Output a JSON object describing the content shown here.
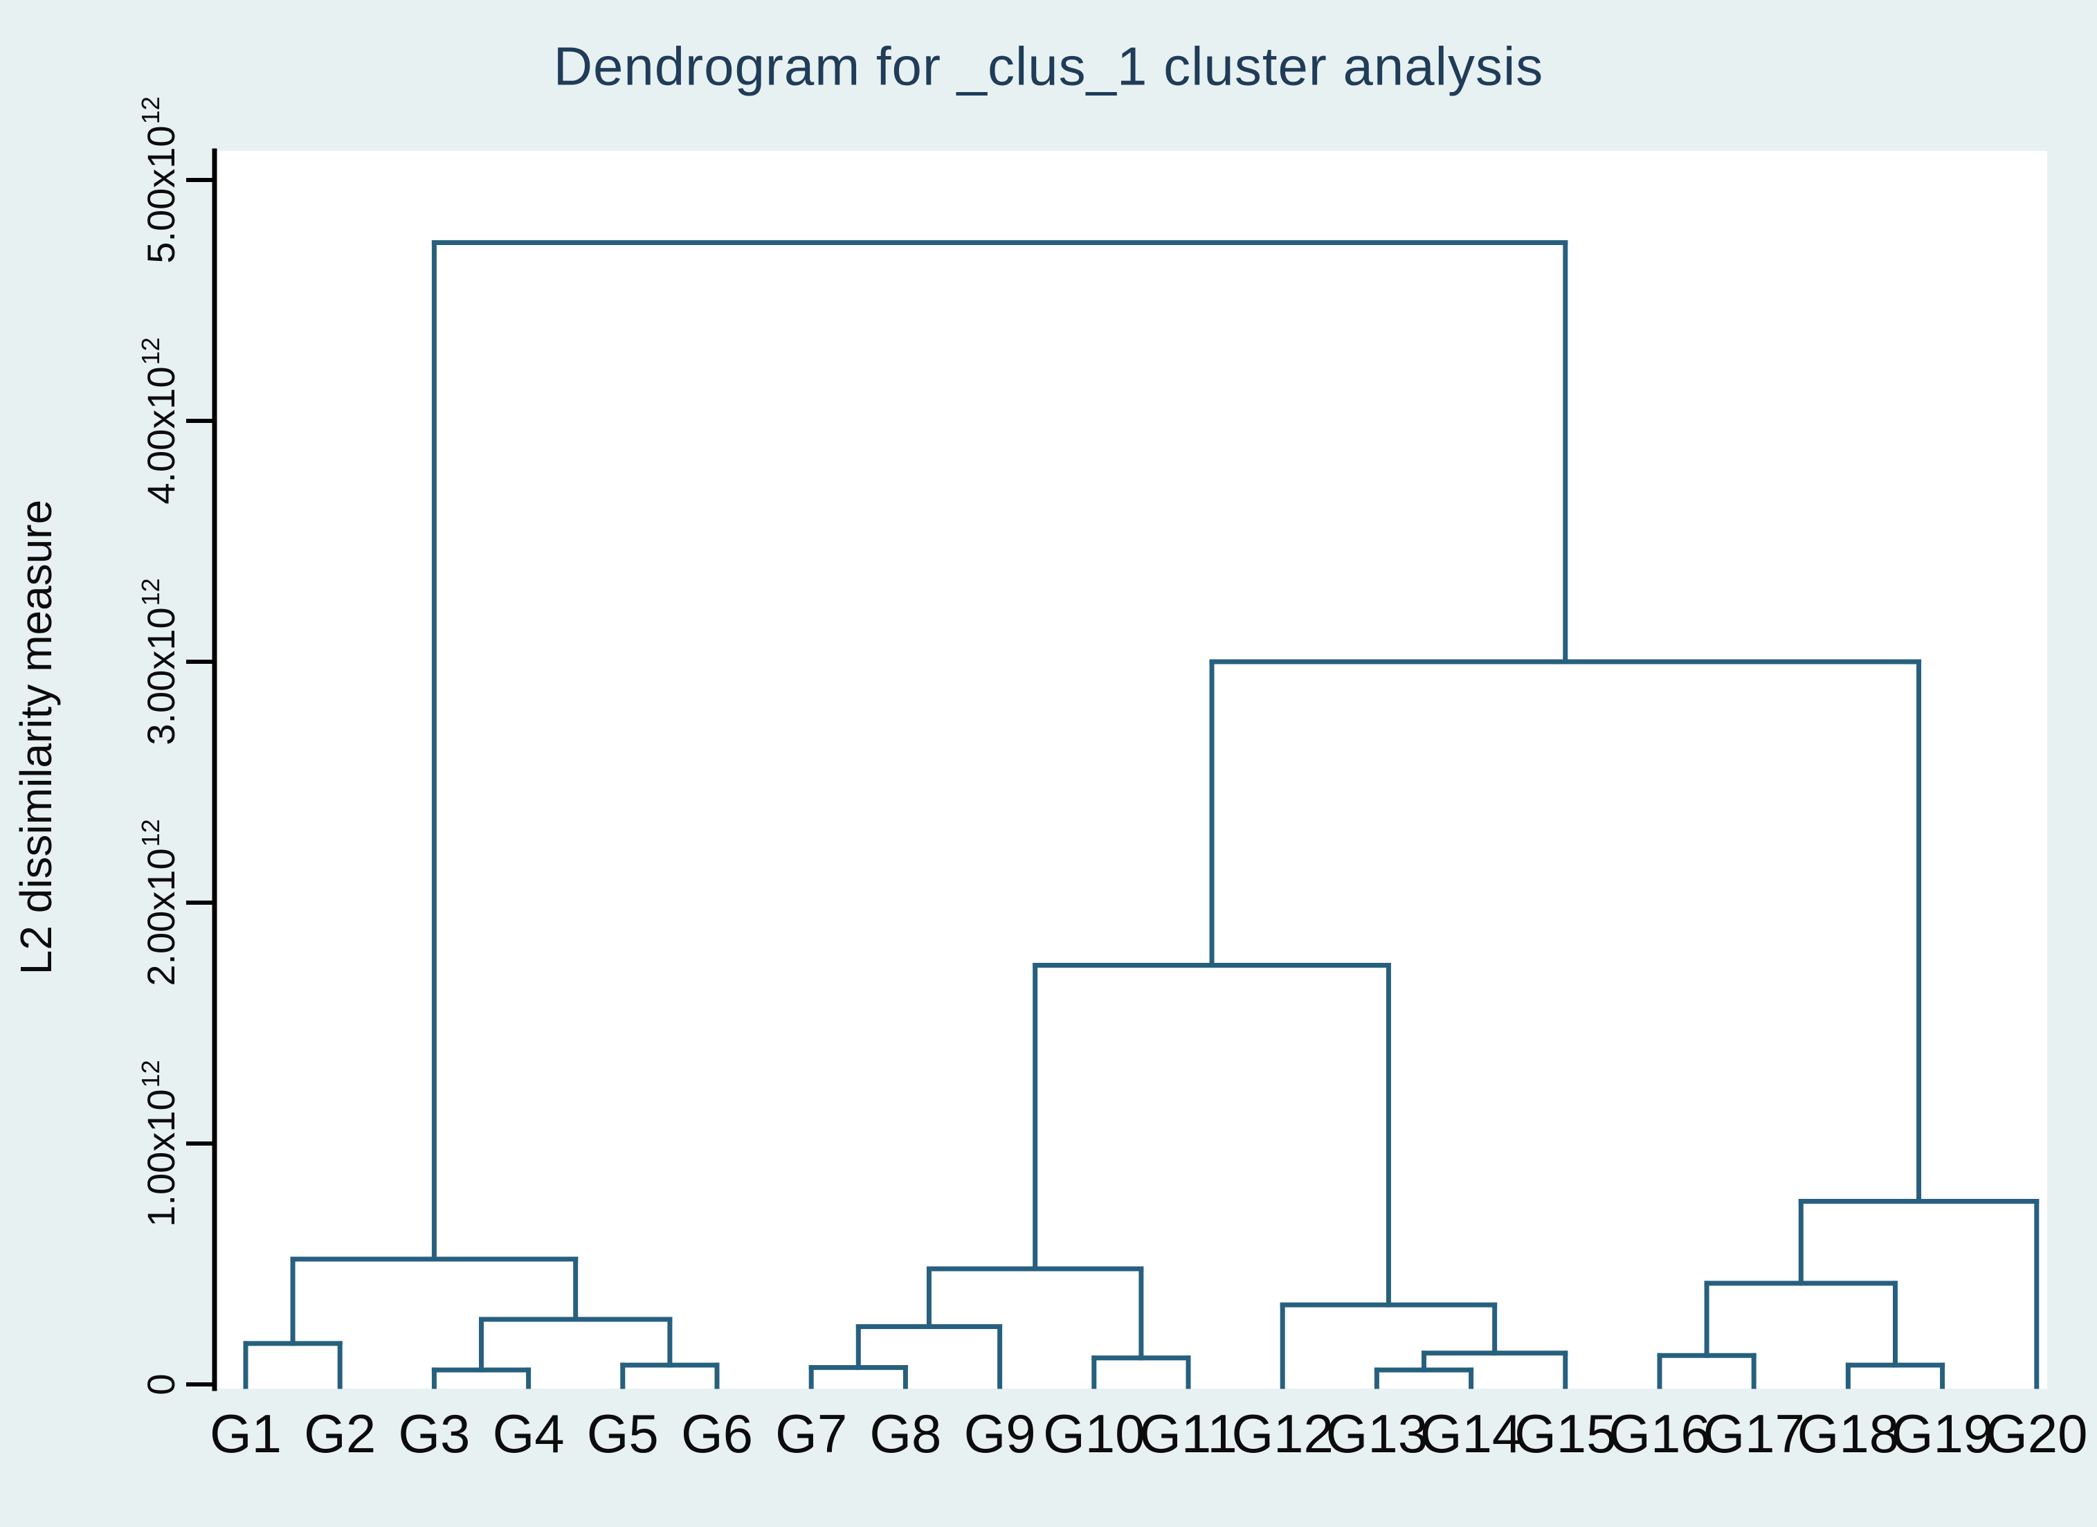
{
  "chart_data": {
    "type": "dendrogram",
    "title": "Dendrogram for _clus_1 cluster analysis",
    "ylabel": "L2 dissimilarity measure",
    "height_unit": "1e12",
    "y_axis": {
      "min": 0,
      "max": 5.12,
      "grid": false,
      "ticks": [
        {
          "v": 0,
          "label": "0"
        },
        {
          "v": 1,
          "label": "1.00x10^12"
        },
        {
          "v": 2,
          "label": "2.00x10^12"
        },
        {
          "v": 3,
          "label": "3.00x10^12"
        },
        {
          "v": 4,
          "label": "4.00x10^12"
        },
        {
          "v": 5,
          "label": "5.00x10^12"
        }
      ]
    },
    "leaves": [
      "G1",
      "G2",
      "G3",
      "G4",
      "G5",
      "G6",
      "G7",
      "G8",
      "G9",
      "G10",
      "G11",
      "G12",
      "G13",
      "G14",
      "G15",
      "G16",
      "G17",
      "G18",
      "G19",
      "G20"
    ],
    "tree": {
      "h": 4.74,
      "c": [
        {
          "h": 0.52,
          "c": [
            {
              "h": 0.17,
              "c": [
                "G1",
                "G2"
              ]
            },
            {
              "h": 0.27,
              "c": [
                {
                  "h": 0.06,
                  "c": [
                    "G3",
                    "G4"
                  ]
                },
                {
                  "h": 0.08,
                  "c": [
                    "G5",
                    "G6"
                  ]
                }
              ]
            }
          ]
        },
        {
          "h": 3.0,
          "c": [
            {
              "h": 1.74,
              "c": [
                {
                  "h": 0.48,
                  "c": [
                    {
                      "h": 0.24,
                      "c": [
                        {
                          "h": 0.07,
                          "c": [
                            "G7",
                            "G8"
                          ]
                        },
                        "G9"
                      ]
                    },
                    {
                      "h": 0.11,
                      "c": [
                        "G10",
                        "G11"
                      ]
                    }
                  ]
                },
                {
                  "h": 0.33,
                  "c": [
                    "G12",
                    {
                      "h": 0.13,
                      "c": [
                        {
                          "h": 0.06,
                          "c": [
                            "G13",
                            "G14"
                          ]
                        },
                        "G15"
                      ]
                    }
                  ]
                }
              ]
            },
            {
              "h": 0.76,
              "c": [
                {
                  "h": 0.42,
                  "c": [
                    {
                      "h": 0.12,
                      "c": [
                        "G16",
                        "G17"
                      ]
                    },
                    {
                      "h": 0.08,
                      "c": [
                        "G18",
                        "G19"
                      ]
                    }
                  ]
                },
                "G20"
              ]
            }
          ]
        }
      ]
    },
    "colors": {
      "line": "#27607f",
      "background": "#e8f1f2",
      "plot_background": "#ffffff",
      "axis": "#000000",
      "title_text": "#1f3c58",
      "label_text": "#0c0c0c"
    }
  }
}
